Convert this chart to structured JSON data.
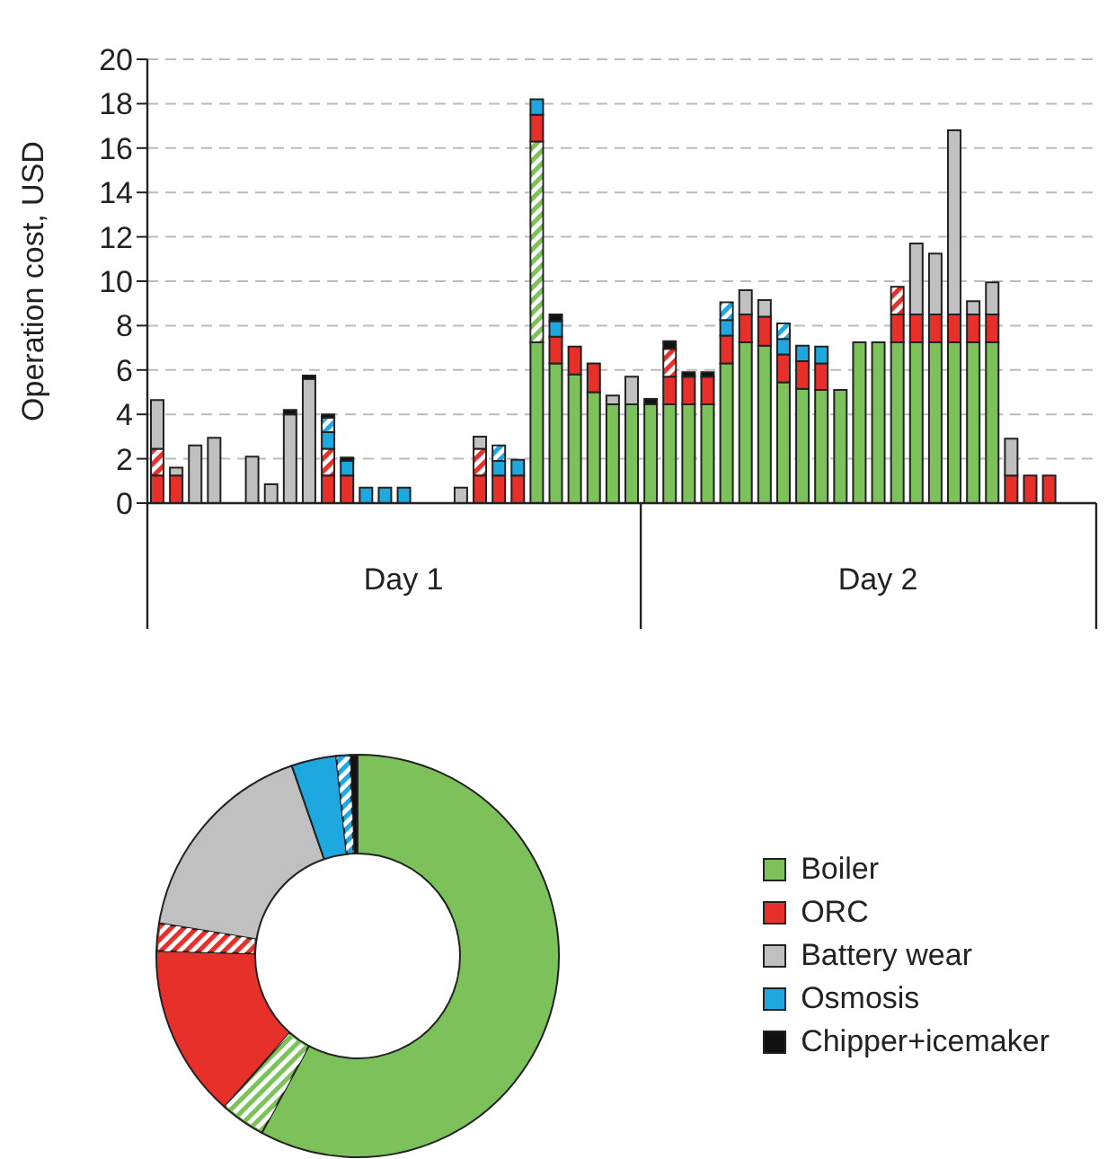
{
  "chart_data": [
    {
      "type": "bar",
      "stacked": true,
      "ylabel": "Operation cost, USD",
      "ylim": [
        0,
        20
      ],
      "yticks": [
        0,
        2,
        4,
        6,
        8,
        10,
        12,
        14,
        16,
        18,
        20
      ],
      "grid": "y",
      "legend": false,
      "categories": [
        null,
        null,
        null,
        null,
        null,
        null,
        null,
        null,
        null,
        null,
        null,
        null,
        null,
        "Day 1",
        null,
        null,
        null,
        null,
        null,
        null,
        null,
        null,
        null,
        null,
        null,
        null,
        null,
        null,
        null,
        null,
        null,
        null,
        null,
        null,
        null,
        null,
        null,
        null,
        "Day 2",
        null,
        null,
        null,
        null,
        null,
        null,
        null,
        null,
        null,
        null,
        null
      ],
      "series": [
        {
          "color": "#7dc15a",
          "values": [
            null,
            null,
            null,
            null,
            null,
            null,
            null,
            null,
            null,
            null,
            null,
            null,
            null,
            null,
            null,
            null,
            null,
            null,
            null,
            null,
            7.25,
            6.3,
            5.8,
            5.0,
            4.45,
            4.45,
            4.45,
            4.45,
            4.45,
            4.45,
            6.3,
            7.25,
            7.1,
            5.45,
            5.15,
            5.1,
            5.1,
            7.25,
            7.25,
            7.25,
            7.25,
            7.25,
            7.25,
            7.25,
            7.25,
            null,
            null,
            null,
            null,
            null
          ]
        },
        {
          "color": "#7dc15a",
          "values": [
            null,
            null,
            null,
            null,
            null,
            null,
            null,
            null,
            null,
            null,
            null,
            null,
            null,
            null,
            null,
            null,
            null,
            null,
            null,
            null,
            9.05,
            null,
            null,
            null,
            null,
            null,
            null,
            null,
            null,
            null,
            null,
            null,
            null,
            null,
            null,
            null,
            null,
            null,
            null,
            null,
            null,
            null,
            null,
            null,
            null,
            null,
            null,
            null,
            null,
            null
          ]
        },
        {
          "color": "#e8302a",
          "values": [
            1.25,
            1.25,
            null,
            null,
            null,
            null,
            null,
            null,
            null,
            1.25,
            1.25,
            null,
            null,
            null,
            null,
            null,
            null,
            1.25,
            1.25,
            1.25,
            1.2,
            1.2,
            1.25,
            1.3,
            null,
            null,
            null,
            1.25,
            1.25,
            1.25,
            1.25,
            1.25,
            1.3,
            1.25,
            1.25,
            1.2,
            null,
            null,
            null,
            1.25,
            1.25,
            1.25,
            1.25,
            1.25,
            1.25,
            1.25,
            1.25,
            1.25,
            null,
            null
          ]
        },
        {
          "color": "#e8302a",
          "values": [
            1.2,
            null,
            null,
            null,
            null,
            null,
            null,
            null,
            null,
            1.2,
            null,
            null,
            null,
            null,
            null,
            null,
            null,
            1.2,
            null,
            null,
            null,
            null,
            null,
            null,
            null,
            null,
            null,
            1.25,
            null,
            null,
            null,
            null,
            null,
            null,
            null,
            null,
            null,
            null,
            null,
            1.25,
            null,
            null,
            null,
            null,
            null,
            null,
            null,
            null,
            null,
            null
          ]
        },
        {
          "color": "#c0c0c0",
          "values": [
            2.2,
            0.35,
            2.6,
            2.95,
            null,
            2.1,
            0.85,
            4.0,
            5.6,
            null,
            null,
            null,
            null,
            null,
            null,
            null,
            0.7,
            0.55,
            null,
            null,
            null,
            null,
            null,
            null,
            0.4,
            1.25,
            null,
            null,
            null,
            null,
            null,
            1.1,
            0.75,
            null,
            null,
            null,
            null,
            null,
            null,
            null,
            3.2,
            2.75,
            8.3,
            0.6,
            1.45,
            1.65,
            null,
            null,
            null,
            null
          ]
        },
        {
          "color": "#1ea8e0",
          "values": [
            null,
            null,
            null,
            null,
            null,
            null,
            null,
            null,
            null,
            0.75,
            0.65,
            0.7,
            0.7,
            0.7,
            null,
            null,
            null,
            null,
            0.65,
            0.7,
            0.7,
            0.7,
            null,
            null,
            null,
            null,
            null,
            null,
            null,
            null,
            0.7,
            null,
            null,
            0.7,
            0.7,
            0.75,
            null,
            null,
            null,
            null,
            null,
            null,
            null,
            null,
            null,
            null,
            null,
            null,
            null,
            null
          ]
        },
        {
          "color": "#1ea8e0",
          "values": [
            null,
            null,
            null,
            null,
            null,
            null,
            null,
            null,
            null,
            0.65,
            null,
            null,
            null,
            null,
            null,
            null,
            null,
            null,
            0.7,
            null,
            null,
            null,
            null,
            null,
            null,
            null,
            null,
            null,
            null,
            null,
            0.8,
            null,
            null,
            0.7,
            null,
            null,
            null,
            null,
            null,
            null,
            null,
            null,
            null,
            null,
            null,
            null,
            null,
            null,
            null,
            null
          ]
        },
        {
          "color": "#111111",
          "values": [
            null,
            null,
            null,
            null,
            null,
            null,
            null,
            0.2,
            0.15,
            0.15,
            0.15,
            null,
            null,
            null,
            null,
            null,
            null,
            null,
            null,
            null,
            null,
            0.3,
            null,
            null,
            null,
            null,
            0.25,
            0.35,
            0.2,
            0.2,
            null,
            null,
            null,
            null,
            null,
            null,
            null,
            null,
            null,
            null,
            null,
            null,
            null,
            null,
            null,
            null,
            null,
            null,
            null,
            null
          ]
        }
      ]
    },
    {
      "type": "donut",
      "legend": "right",
      "categories": [
        "Boiler",
        null,
        "ORC",
        null,
        "Battery wear",
        "Osmosis",
        null,
        "Chipper+icemaker"
      ],
      "values": [
        57.9,
        3.6,
        13.9,
        2.2,
        17.1,
        3.6,
        1.1,
        0.6
      ],
      "colors": [
        "#7dc15a",
        "#7dc15a",
        "#e8302a",
        "#e8302a",
        "#c0c0c0",
        "#1ea8e0",
        "#1ea8e0",
        "#111111"
      ]
    }
  ]
}
